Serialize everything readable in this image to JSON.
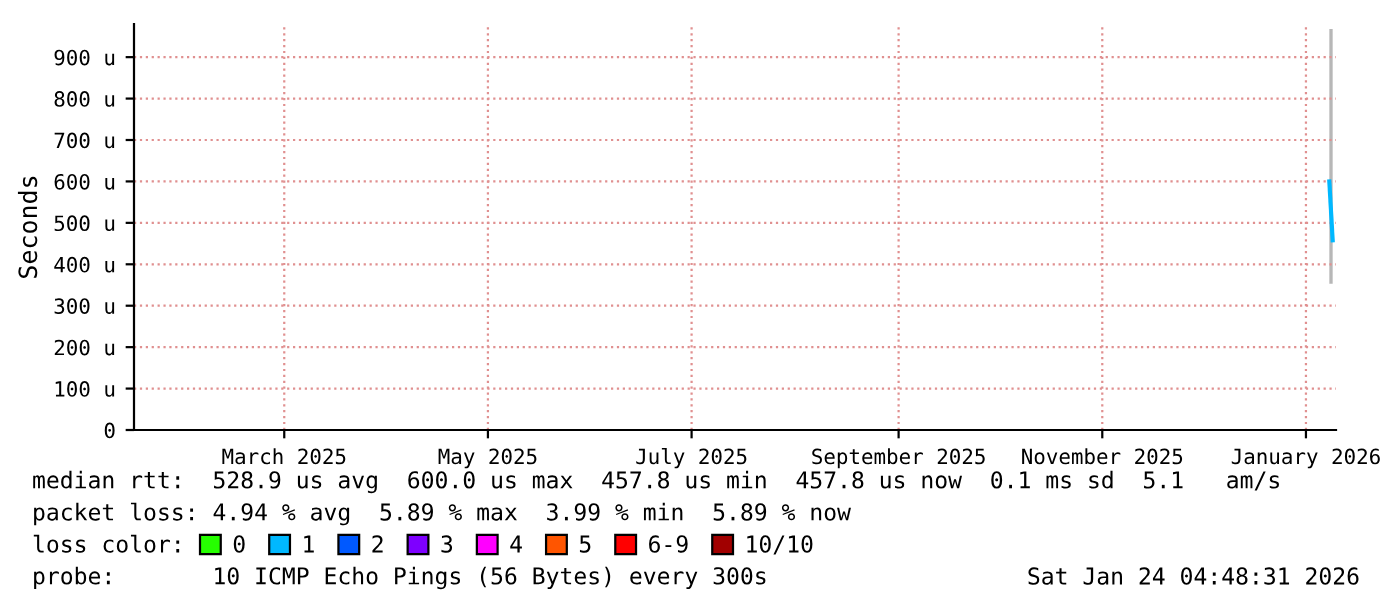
{
  "chart_data": {
    "type": "line",
    "ylabel": "Seconds",
    "xlim": [
      "2025-01-30",
      "2026-01-25"
    ],
    "xticks": [
      {
        "value": "2025-03-16",
        "label": "March 2025"
      },
      {
        "value": "2025-05-16",
        "label": "May 2025"
      },
      {
        "value": "2025-07-16",
        "label": "July 2025"
      },
      {
        "value": "2025-09-16",
        "label": "September 2025"
      },
      {
        "value": "2025-11-16",
        "label": "November 2025"
      },
      {
        "value": "2026-01-16",
        "label": "January 2026"
      }
    ],
    "ylim": [
      0,
      980
    ],
    "yticks": [
      0,
      {
        "value": 100,
        "label": "100 u"
      },
      {
        "value": 200,
        "label": "200 u"
      },
      {
        "value": 300,
        "label": "300 u"
      },
      {
        "value": 400,
        "label": "400 u"
      },
      {
        "value": 500,
        "label": "500 u"
      },
      {
        "value": 600,
        "label": "600 u"
      },
      {
        "value": 700,
        "label": "700 u"
      },
      {
        "value": 800,
        "label": "800 u"
      },
      {
        "value": 900,
        "label": "900 u"
      }
    ],
    "grid": true,
    "marker": "none",
    "line_style": "solid",
    "legend": "bottom",
    "series": [
      {
        "color": "#00b8ff",
        "x": [
          "2026-01-23",
          "2026-01-24"
        ],
        "values": [
          600,
          458
        ],
        "lower": [
          353,
          353
        ],
        "upper": [
          968,
          968
        ]
      },
      {
        "name": "0",
        "color": "#26ff00"
      },
      {
        "name": "1",
        "color": "#00b8ff"
      },
      {
        "name": "2",
        "color": "#0059ff"
      },
      {
        "name": "3",
        "color": "#7e00ff"
      },
      {
        "name": "4",
        "color": "#ff00ff"
      },
      {
        "name": "5",
        "color": "#ff5500"
      },
      {
        "name": "6-9",
        "color": "#ff0000"
      },
      {
        "name": "10/10",
        "color": "#a10000"
      }
    ],
    "annotations": [
      "median rtt:  528.9 us avg  600.0 us max  457.8 us min  457.8 us now  0.1 ms sd  5.1   am/s",
      "packet loss: 4.94 % avg  5.89 % max  3.99 % min  5.89 % now",
      "loss color:",
      "probe:       10 ICMP Echo Pings (56 Bytes) every 300s",
      "Sat Jan 24 04:48:31 2026"
    ]
  }
}
